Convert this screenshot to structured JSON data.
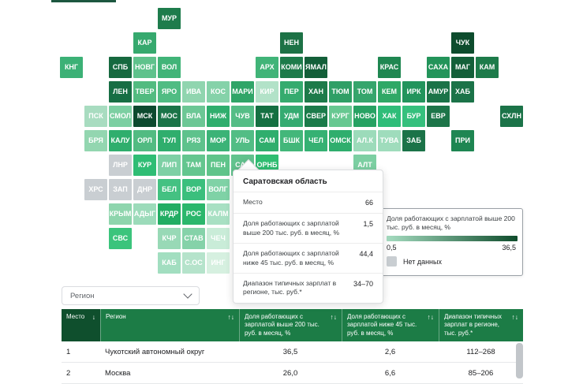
{
  "map": {
    "tiles": [
      {
        "code": "МУР",
        "row": 0,
        "col": 4,
        "color": "#1e7c4c"
      },
      {
        "code": "КАР",
        "row": 1,
        "col": 3,
        "color": "#36a96e"
      },
      {
        "code": "НЕН",
        "row": 1,
        "col": 9,
        "color": "#1d7246"
      },
      {
        "code": "ЧУК",
        "row": 1,
        "col": 16,
        "color": "#0d4c2d"
      },
      {
        "code": "КНГ",
        "row": 2,
        "col": 0,
        "color": "#3cb176"
      },
      {
        "code": "СПБ",
        "row": 2,
        "col": 2,
        "color": "#16693f"
      },
      {
        "code": "НОВГ",
        "row": 2,
        "col": 3,
        "color": "#5fc28c"
      },
      {
        "code": "ВОЛ",
        "row": 2,
        "col": 4,
        "color": "#41b478"
      },
      {
        "code": "АРХ",
        "row": 2,
        "col": 8,
        "color": "#41b478"
      },
      {
        "code": "КОМИ",
        "row": 2,
        "col": 9,
        "color": "#1d7b4a"
      },
      {
        "code": "ЯМАЛ",
        "row": 2,
        "col": 10,
        "color": "#135f39"
      },
      {
        "code": "КРАС",
        "row": 2,
        "col": 13,
        "color": "#1f8751"
      },
      {
        "code": "САХА",
        "row": 2,
        "col": 15,
        "color": "#23945a"
      },
      {
        "code": "МАГ",
        "row": 2,
        "col": 16,
        "color": "#135f39"
      },
      {
        "code": "КАМ",
        "row": 2,
        "col": 17,
        "color": "#1d7b4a"
      },
      {
        "code": "ЛЕН",
        "row": 3,
        "col": 2,
        "color": "#176e44"
      },
      {
        "code": "ТВЕР",
        "row": 3,
        "col": 3,
        "color": "#52bb80"
      },
      {
        "code": "ЯРО",
        "row": 3,
        "col": 4,
        "color": "#50bc83"
      },
      {
        "code": "ИВА",
        "row": 3,
        "col": 5,
        "color": "#90d5af"
      },
      {
        "code": "КОС",
        "row": 3,
        "col": 6,
        "color": "#85d2a9"
      },
      {
        "code": "МАРИ",
        "row": 3,
        "col": 7,
        "color": "#30a568"
      },
      {
        "code": "КИР",
        "row": 3,
        "col": 8,
        "color": "#b2e2c8"
      },
      {
        "code": "ПЕР",
        "row": 3,
        "col": 9,
        "color": "#35ab6e"
      },
      {
        "code": "ХАН",
        "row": 3,
        "col": 10,
        "color": "#1d7b4a"
      },
      {
        "code": "ТЮМ",
        "row": 3,
        "col": 11,
        "color": "#2f9f66"
      },
      {
        "code": "ТОМ",
        "row": 3,
        "col": 12,
        "color": "#35a56c"
      },
      {
        "code": "КЕМ",
        "row": 3,
        "col": 13,
        "color": "#2fa866"
      },
      {
        "code": "ИРК",
        "row": 3,
        "col": 14,
        "color": "#22945c"
      },
      {
        "code": "АМУР",
        "row": 3,
        "col": 15,
        "color": "#1b7348"
      },
      {
        "code": "ХАБ",
        "row": 3,
        "col": 16,
        "color": "#1b7348"
      },
      {
        "code": "ПСК",
        "row": 4,
        "col": 1,
        "color": "#a8dcc0"
      },
      {
        "code": "СМОЛ",
        "row": 4,
        "col": 2,
        "color": "#7ccfa2"
      },
      {
        "code": "МСК",
        "row": 4,
        "col": 3,
        "color": "#0d4a2f"
      },
      {
        "code": "МОС",
        "row": 4,
        "col": 4,
        "color": "#1b7448"
      },
      {
        "code": "ВЛА",
        "row": 4,
        "col": 5,
        "color": "#6cc795"
      },
      {
        "code": "НИЖ",
        "row": 4,
        "col": 6,
        "color": "#2fae6d"
      },
      {
        "code": "ЧУВ",
        "row": 4,
        "col": 7,
        "color": "#55bd86"
      },
      {
        "code": "ТАТ",
        "row": 4,
        "col": 8,
        "color": "#157042"
      },
      {
        "code": "УДМ",
        "row": 4,
        "col": 9,
        "color": "#35ab71"
      },
      {
        "code": "СВЕР",
        "row": 4,
        "col": 10,
        "color": "#1b7b4a"
      },
      {
        "code": "КУРГ",
        "row": 4,
        "col": 11,
        "color": "#67c891"
      },
      {
        "code": "НОВО",
        "row": 4,
        "col": 12,
        "color": "#27a263"
      },
      {
        "code": "ХАК",
        "row": 4,
        "col": 13,
        "color": "#2fbd79"
      },
      {
        "code": "БУР",
        "row": 4,
        "col": 14,
        "color": "#35c07d"
      },
      {
        "code": "ЕВР",
        "row": 4,
        "col": 15,
        "color": "#1d7549"
      },
      {
        "code": "СХЛН",
        "row": 4,
        "col": 18,
        "color": "#1b7348"
      },
      {
        "code": "БРЯ",
        "row": 5,
        "col": 1,
        "color": "#93d6b0"
      },
      {
        "code": "КАЛУ",
        "row": 5,
        "col": 2,
        "color": "#2fae6d"
      },
      {
        "code": "ОРЛ",
        "row": 5,
        "col": 3,
        "color": "#52bb82"
      },
      {
        "code": "ТУЛ",
        "row": 5,
        "col": 4,
        "color": "#2fae6d"
      },
      {
        "code": "РЯЗ",
        "row": 5,
        "col": 5,
        "color": "#5ec28c"
      },
      {
        "code": "МОР",
        "row": 5,
        "col": 6,
        "color": "#3bb377"
      },
      {
        "code": "УЛЬ",
        "row": 5,
        "col": 7,
        "color": "#52bd85"
      },
      {
        "code": "САМ",
        "row": 5,
        "col": 8,
        "color": "#2fae6d"
      },
      {
        "code": "БШК",
        "row": 5,
        "col": 9,
        "color": "#43b77a"
      },
      {
        "code": "ЧЕЛ",
        "row": 5,
        "col": 10,
        "color": "#35b173"
      },
      {
        "code": "ОМСК",
        "row": 5,
        "col": 11,
        "color": "#2fae6d"
      },
      {
        "code": "АЛ.К",
        "row": 5,
        "col": 12,
        "color": "#9cdbba"
      },
      {
        "code": "ТУВА",
        "row": 5,
        "col": 13,
        "color": "#9fdcbc"
      },
      {
        "code": "ЗАБ",
        "row": 5,
        "col": 14,
        "color": "#1b7348"
      },
      {
        "code": "ПРИ",
        "row": 5,
        "col": 16,
        "color": "#1e8652"
      },
      {
        "code": "ЛНР",
        "row": 6,
        "col": 2,
        "color": "#c9ced2"
      },
      {
        "code": "КУР",
        "row": 6,
        "col": 3,
        "color": "#2fbd74"
      },
      {
        "code": "ЛИП",
        "row": 6,
        "col": 4,
        "color": "#7ed0a5"
      },
      {
        "code": "ТАМ",
        "row": 6,
        "col": 5,
        "color": "#64c68f"
      },
      {
        "code": "ПЕН",
        "row": 6,
        "col": 6,
        "color": "#5fc48a"
      },
      {
        "code": "САР",
        "row": 6,
        "col": 7,
        "color": "#62c38e"
      },
      {
        "code": "ОРНБ",
        "row": 6,
        "col": 8,
        "color": "#2fbd71"
      },
      {
        "code": "АЛТ",
        "row": 6,
        "col": 12,
        "color": "#7ccfa2"
      },
      {
        "code": "ХРС",
        "row": 7,
        "col": 1,
        "color": "#c9ced2"
      },
      {
        "code": "ЗАП",
        "row": 7,
        "col": 2,
        "color": "#c9ced2"
      },
      {
        "code": "ДНР",
        "row": 7,
        "col": 3,
        "color": "#c9ced2"
      },
      {
        "code": "БЕЛ",
        "row": 7,
        "col": 4,
        "color": "#44c182"
      },
      {
        "code": "ВОР",
        "row": 7,
        "col": 5,
        "color": "#3bbf7d"
      },
      {
        "code": "ВОЛГ",
        "row": 7,
        "col": 6,
        "color": "#7fd2a6"
      },
      {
        "code": "КРЫМ",
        "row": 8,
        "col": 2,
        "color": "#8ed5ad"
      },
      {
        "code": "АДЫГ",
        "row": 8,
        "col": 3,
        "color": "#9cdbba"
      },
      {
        "code": "КРДР",
        "row": 8,
        "col": 4,
        "color": "#22ad63"
      },
      {
        "code": "РОС",
        "row": 8,
        "col": 5,
        "color": "#2bb76c"
      },
      {
        "code": "КАЛМ",
        "row": 8,
        "col": 6,
        "color": "#a8e0c3"
      },
      {
        "code": "СВС",
        "row": 9,
        "col": 2,
        "color": "#3bc47c"
      },
      {
        "code": "КЧР",
        "row": 9,
        "col": 4,
        "color": "#98d9b6"
      },
      {
        "code": "СТАВ",
        "row": 9,
        "col": 5,
        "color": "#85d2a9"
      },
      {
        "code": "ЧЕЧ",
        "row": 9,
        "col": 6,
        "color": "#c9ecd8"
      },
      {
        "code": "КАБ",
        "row": 10,
        "col": 4,
        "color": "#a2dec0"
      },
      {
        "code": "С.ОС",
        "row": 10,
        "col": 5,
        "color": "#b5e3cb"
      },
      {
        "code": "ИНГ",
        "row": 10,
        "col": 6,
        "color": "#d6f0e0"
      }
    ]
  },
  "tooltip": {
    "title": "Саратовская область",
    "rows": [
      {
        "label": "Место",
        "value": "66"
      },
      {
        "label": "Доля работающих с зарплатой выше 200 тыс. руб. в месяц, %",
        "value": "1,5"
      },
      {
        "label": "Доля работающих с зарплатой ниже 45 тыс. руб. в месяц, %",
        "value": "44,4"
      },
      {
        "label": "Диапазон типичных зарплат в регионе, тыс. руб.*",
        "value": "34–70"
      }
    ]
  },
  "legend": {
    "title": "Доля работающих с зарплатой выше 200 тыс. руб. в месяц, %",
    "min": "0,5",
    "max": "36,5",
    "gradient_from": "#a5dcc0",
    "gradient_to": "#0f4c2c",
    "no_data_label": "Нет данных",
    "no_data_color": "#c9ced2"
  },
  "filter": {
    "region_label": "Регион"
  },
  "table": {
    "columns": [
      {
        "label": "Место",
        "sort": "↓"
      },
      {
        "label": "Регион",
        "sort": "↑↓"
      },
      {
        "label": "Доля работающих с зарплатой выше 200 тыс. руб. в месяц, %",
        "sort": "↑↓"
      },
      {
        "label": "Доля работающих с зарплатой ниже 45 тыс. руб. в месяц, %",
        "sort": "↑↓"
      },
      {
        "label": "Диапазон типичных зарплат в регионе, тыс. руб.*",
        "sort": "↑↓"
      }
    ],
    "rows": [
      [
        "1",
        "Чукотский автономный округ",
        "36,5",
        "2,6",
        "112–268"
      ],
      [
        "2",
        "Москва",
        "26,0",
        "6,6",
        "85–206"
      ]
    ]
  },
  "chart_data": {
    "type": "heatmap",
    "title": "Доля работающих с зарплатой выше 200 тыс. руб. в месяц, %",
    "scale": {
      "min": 0.5,
      "max": 36.5,
      "unit": "%",
      "low_color": "#a5dcc0",
      "high_color": "#0f4c2c"
    },
    "no_data_regions": [
      "ЛНР",
      "ХРС",
      "ЗАП",
      "ДНР"
    ],
    "selected_region": {
      "name": "Саратовская область",
      "place": 66,
      "share_above_200k_pct": 1.5,
      "share_below_45k_pct": 44.4,
      "typical_salary_range_thousand_rub": "34–70"
    },
    "table_rows": [
      {
        "place": 1,
        "region": "Чукотский автономный округ",
        "share_above_200k_pct": 36.5,
        "share_below_45k_pct": 2.6,
        "typical_salary_range_thousand_rub": "112–268"
      },
      {
        "place": 2,
        "region": "Москва",
        "share_above_200k_pct": 26.0,
        "share_below_45k_pct": 6.6,
        "typical_salary_range_thousand_rub": "85–206"
      }
    ],
    "region_codes_shown": [
      "МУР",
      "КАР",
      "НЕН",
      "ЧУК",
      "КНГ",
      "СПБ",
      "НОВГ",
      "ВОЛ",
      "АРХ",
      "КОМИ",
      "ЯМАЛ",
      "КРАС",
      "САХА",
      "МАГ",
      "КАМ",
      "ЛЕН",
      "ТВЕР",
      "ЯРО",
      "ИВА",
      "КОС",
      "МАРИ",
      "КИР",
      "ПЕР",
      "ХАН",
      "ТЮМ",
      "ТОМ",
      "КЕМ",
      "ИРК",
      "АМУР",
      "ХАБ",
      "ПСК",
      "СМОЛ",
      "МСК",
      "МОС",
      "ВЛА",
      "НИЖ",
      "ЧУВ",
      "ТАТ",
      "УДМ",
      "СВЕР",
      "КУРГ",
      "НОВО",
      "ХАК",
      "БУР",
      "ЕВР",
      "СХЛН",
      "БРЯ",
      "КАЛУ",
      "ОРЛ",
      "ТУЛ",
      "РЯЗ",
      "МОР",
      "УЛЬ",
      "САМ",
      "БШК",
      "ЧЕЛ",
      "ОМСК",
      "АЛ.К",
      "ТУВА",
      "ЗАБ",
      "ПРИ",
      "ЛНР",
      "КУР",
      "ЛИП",
      "ТАМ",
      "ПЕН",
      "САР",
      "ОРНБ",
      "АЛТ",
      "ХРС",
      "ЗАП",
      "ДНР",
      "БЕЛ",
      "ВОР",
      "ВОЛГ",
      "КРЫМ",
      "АДЫГ",
      "КРДР",
      "РОС",
      "КАЛМ",
      "СВС",
      "КЧР",
      "СТАВ",
      "ЧЕЧ",
      "КАБ",
      "С.ОС",
      "ИНГ"
    ]
  }
}
